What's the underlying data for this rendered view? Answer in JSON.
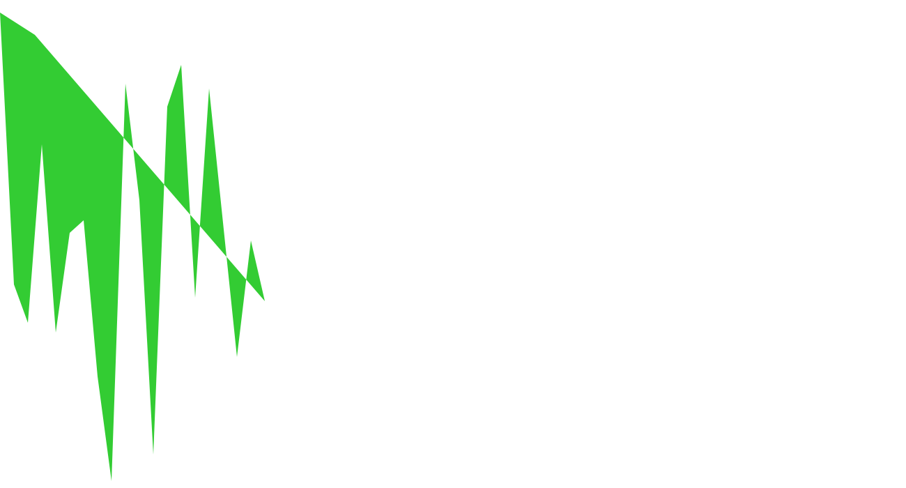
{
  "shape": {
    "fill_color": "#33cc33",
    "background_color": "#ffffff"
  }
}
